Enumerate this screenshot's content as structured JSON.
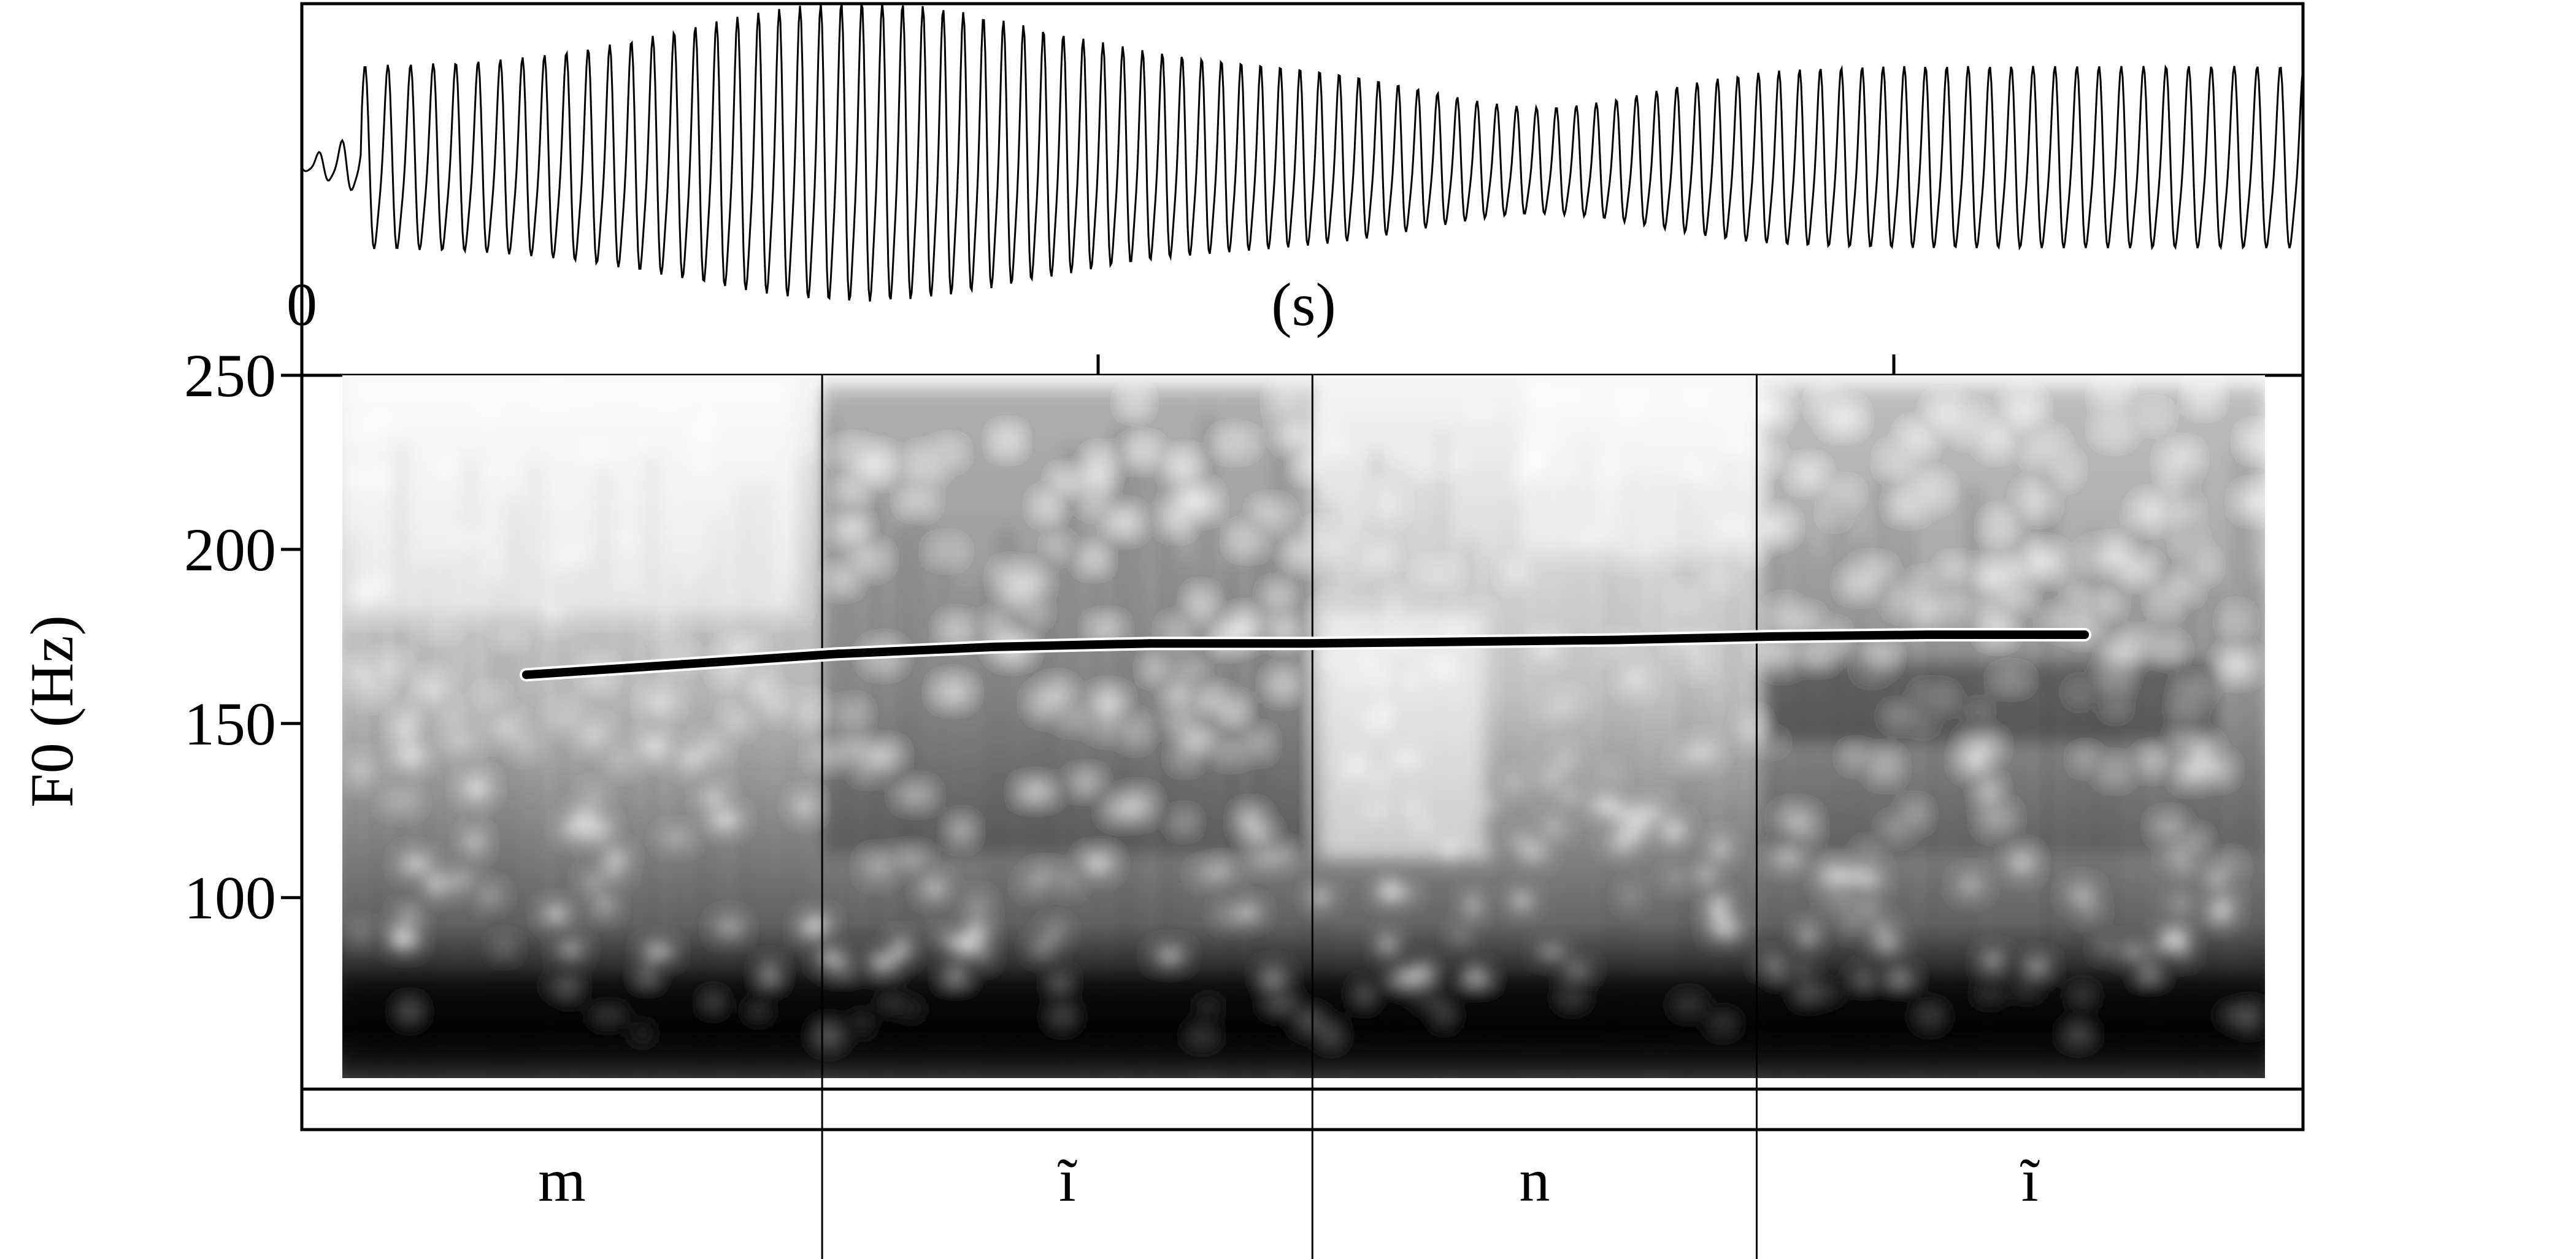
{
  "chart_data": {
    "type": "line",
    "title": "",
    "xlabel": "(s)",
    "ylabel": "F0 (Hz)",
    "x_tick_labels": [
      "0"
    ],
    "ylim": [
      45,
      250
    ],
    "yticks": [
      100,
      150,
      200,
      250
    ],
    "grid": false,
    "series": [
      {
        "x": [
          0.0,
          0.1,
          0.2,
          0.3,
          0.4,
          0.5,
          0.6,
          0.7,
          0.8,
          0.9,
          1.0
        ],
        "values": [
          164,
          167,
          170,
          172,
          173,
          173,
          173.5,
          174,
          175,
          175.5,
          175.5
        ]
      }
    ],
    "segments": [
      {
        "label": "m",
        "start": 0.0,
        "end": 0.26
      },
      {
        "label": "ĩ",
        "start": 0.26,
        "end": 0.505
      },
      {
        "label": "n",
        "start": 0.505,
        "end": 0.727
      },
      {
        "label": "ĩ",
        "start": 0.727,
        "end": 1.0
      }
    ],
    "colors": {
      "curve": "#000000",
      "curve_outline": "#ffffff",
      "frame": "#000000"
    }
  }
}
